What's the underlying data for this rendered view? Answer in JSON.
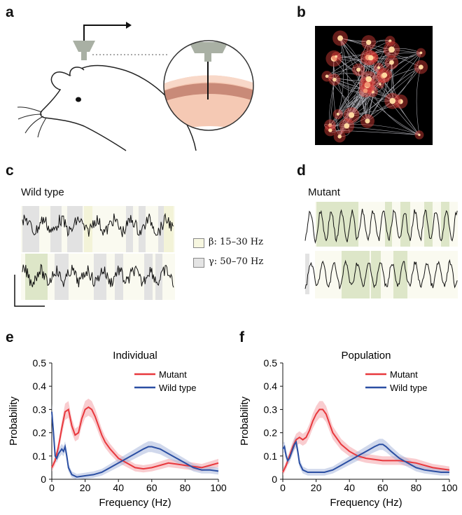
{
  "panels": {
    "a": "a",
    "b": "b",
    "c": "c",
    "d": "d",
    "e": "e",
    "f": "f"
  },
  "traces": {
    "wild_type_title": "Wild type",
    "mutant_title": "Mutant",
    "legend": [
      {
        "label": "β: 15–30 Hz",
        "color": "#f7f7e0"
      },
      {
        "label": "γ: 50–70 Hz",
        "color": "#e6e6e6"
      }
    ]
  },
  "colors": {
    "mutant": "#e8383d",
    "wild_type": "#2b4fa3",
    "beta_band": "#f7f7e0",
    "gamma_band": "#e4e4e4",
    "beta_dark": "#dde6c8"
  },
  "chart_data": [
    {
      "type": "line",
      "title": "Individual",
      "xlabel": "Frequency (Hz)",
      "ylabel": "Probability",
      "xlim": [
        0,
        100
      ],
      "ylim": [
        0,
        0.5
      ],
      "xticks": [
        0,
        20,
        40,
        60,
        80,
        100
      ],
      "yticks": [
        0,
        0.1,
        0.2,
        0.3,
        0.4,
        0.5
      ],
      "ytick_labels": [
        "0",
        "0.1",
        "0.2",
        "0.3",
        "0.4",
        "0.5"
      ],
      "legend_position": "top-right",
      "series": [
        {
          "name": "Mutant",
          "x": [
            0,
            2,
            4,
            6,
            8,
            10,
            12,
            14,
            16,
            18,
            20,
            22,
            24,
            26,
            28,
            30,
            32,
            35,
            40,
            45,
            50,
            55,
            60,
            65,
            70,
            75,
            80,
            85,
            90,
            95,
            100
          ],
          "y": [
            0.05,
            0.08,
            0.14,
            0.22,
            0.29,
            0.3,
            0.23,
            0.19,
            0.2,
            0.26,
            0.3,
            0.31,
            0.3,
            0.27,
            0.23,
            0.19,
            0.16,
            0.13,
            0.09,
            0.07,
            0.05,
            0.045,
            0.05,
            0.06,
            0.07,
            0.065,
            0.06,
            0.055,
            0.05,
            0.06,
            0.07
          ]
        },
        {
          "name": "Wild type",
          "x": [
            0,
            1,
            2,
            3,
            4,
            5,
            6,
            7,
            8,
            9,
            10,
            12,
            15,
            20,
            25,
            30,
            35,
            40,
            45,
            50,
            55,
            58,
            60,
            65,
            70,
            75,
            80,
            85,
            90,
            95,
            100
          ],
          "y": [
            0.29,
            0.2,
            0.1,
            0.09,
            0.11,
            0.12,
            0.13,
            0.12,
            0.14,
            0.1,
            0.05,
            0.02,
            0.01,
            0.015,
            0.02,
            0.03,
            0.05,
            0.07,
            0.09,
            0.11,
            0.13,
            0.14,
            0.14,
            0.13,
            0.11,
            0.09,
            0.07,
            0.05,
            0.04,
            0.04,
            0.035
          ]
        }
      ]
    },
    {
      "type": "line",
      "title": "Population",
      "xlabel": "Frequency (Hz)",
      "ylabel": "Probability",
      "xlim": [
        0,
        100
      ],
      "ylim": [
        0,
        0.5
      ],
      "xticks": [
        0,
        20,
        40,
        60,
        80,
        100
      ],
      "yticks": [
        0,
        0.1,
        0.2,
        0.3,
        0.4,
        0.5
      ],
      "ytick_labels": [
        "0",
        "0.1",
        "0.2",
        "0.3",
        "0.4",
        "0.5"
      ],
      "legend_position": "top-right",
      "series": [
        {
          "name": "Mutant",
          "x": [
            0,
            2,
            4,
            6,
            8,
            10,
            12,
            14,
            16,
            18,
            20,
            22,
            24,
            26,
            28,
            30,
            35,
            40,
            45,
            50,
            55,
            60,
            65,
            70,
            75,
            80,
            85,
            90,
            95,
            100
          ],
          "y": [
            0.03,
            0.06,
            0.1,
            0.14,
            0.17,
            0.18,
            0.17,
            0.18,
            0.21,
            0.25,
            0.28,
            0.3,
            0.3,
            0.28,
            0.24,
            0.2,
            0.15,
            0.12,
            0.1,
            0.09,
            0.085,
            0.08,
            0.08,
            0.08,
            0.075,
            0.07,
            0.06,
            0.05,
            0.045,
            0.04
          ]
        },
        {
          "name": "Wild type",
          "x": [
            0,
            1,
            2,
            3,
            4,
            5,
            6,
            7,
            8,
            9,
            10,
            12,
            15,
            20,
            25,
            30,
            35,
            40,
            45,
            50,
            55,
            58,
            60,
            62,
            65,
            70,
            75,
            80,
            85,
            90,
            95,
            100
          ],
          "y": [
            0.13,
            0.14,
            0.1,
            0.08,
            0.09,
            0.11,
            0.13,
            0.15,
            0.16,
            0.12,
            0.07,
            0.04,
            0.03,
            0.03,
            0.03,
            0.04,
            0.06,
            0.08,
            0.1,
            0.12,
            0.14,
            0.15,
            0.15,
            0.14,
            0.12,
            0.09,
            0.07,
            0.05,
            0.04,
            0.035,
            0.03,
            0.03
          ]
        }
      ]
    }
  ]
}
